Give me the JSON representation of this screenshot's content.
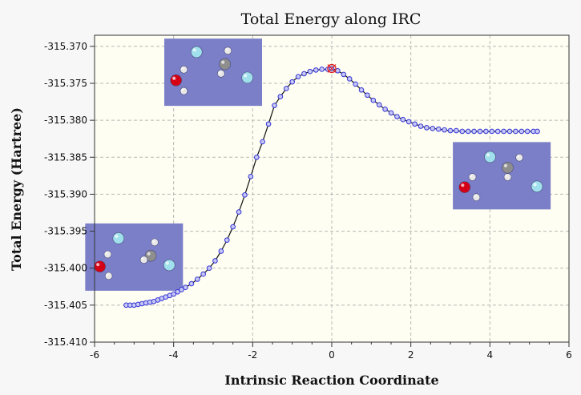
{
  "chart_data": {
    "type": "line",
    "title": "Total Energy along IRC",
    "xlabel": "Intrinsic Reaction Coordinate",
    "ylabel": "Total Energy (Hartree)",
    "xlim": [
      -6,
      6
    ],
    "ylim": [
      -315.41,
      -315.3685
    ],
    "x_ticks": [
      -6,
      -4,
      -2,
      0,
      2,
      4,
      6
    ],
    "y_ticks": [
      -315.37,
      -315.375,
      -315.38,
      -315.385,
      -315.39,
      -315.395,
      -315.4,
      -315.405,
      -315.41
    ],
    "x_tick_labels": [
      "-6",
      "-4",
      "-2",
      "0",
      "2",
      "4",
      "6"
    ],
    "y_tick_labels": [
      "-315.370",
      "-315.375",
      "-315.380",
      "-315.385",
      "-315.390",
      "-315.395",
      "-315.400",
      "-315.405",
      "-315.410"
    ],
    "grid": true,
    "legend": "none",
    "colors": {
      "plot_bg": "#fefef2",
      "line": "#111111",
      "marker_fill": "#c8c8f5",
      "marker_edge": "#3434d6",
      "highlight": "#e0201c",
      "molecule_panel": "#7b7fc8"
    },
    "series": [
      {
        "x": [
          -5.2,
          -5.1,
          -5.0,
          -4.9,
          -4.8,
          -4.7,
          -4.6,
          -4.5,
          -4.4,
          -4.3,
          -4.2,
          -4.1,
          -4.0,
          -3.9,
          -3.8,
          -3.7,
          -3.55,
          -3.4,
          -3.25,
          -3.1,
          -2.95,
          -2.8,
          -2.65,
          -2.5,
          -2.35,
          -2.2,
          -2.05,
          -1.9,
          -1.75,
          -1.6,
          -1.45,
          -1.3,
          -1.15,
          -1.0,
          -0.85,
          -0.7,
          -0.55,
          -0.4,
          -0.25,
          -0.1,
          0.0,
          0.15,
          0.3,
          0.45,
          0.6,
          0.75,
          0.9,
          1.05,
          1.2,
          1.35,
          1.5,
          1.65,
          1.8,
          1.95,
          2.1,
          2.25,
          2.4,
          2.55,
          2.7,
          2.85,
          3.0,
          3.15,
          3.3,
          3.45,
          3.6,
          3.75,
          3.9,
          4.05,
          4.2,
          4.35,
          4.5,
          4.65,
          4.8,
          4.95,
          5.1,
          5.2
        ],
        "y": [
          -315.405,
          -315.405,
          -315.405,
          -315.4049,
          -315.4048,
          -315.4047,
          -315.4046,
          -315.4045,
          -315.4043,
          -315.4041,
          -315.4039,
          -315.4037,
          -315.4035,
          -315.4032,
          -315.4029,
          -315.4026,
          -315.4021,
          -315.4015,
          -315.4008,
          -315.4,
          -315.399,
          -315.3977,
          -315.3962,
          -315.3944,
          -315.3924,
          -315.3901,
          -315.3876,
          -315.385,
          -315.3829,
          -315.3805,
          -315.378,
          -315.3768,
          -315.3757,
          -315.3748,
          -315.3741,
          -315.3737,
          -315.3734,
          -315.3732,
          -315.3731,
          -315.3731,
          -315.373,
          -315.3733,
          -315.3738,
          -315.3744,
          -315.3751,
          -315.3759,
          -315.3766,
          -315.3773,
          -315.3779,
          -315.3785,
          -315.379,
          -315.3795,
          -315.3799,
          -315.3802,
          -315.3805,
          -315.3808,
          -315.381,
          -315.3811,
          -315.3812,
          -315.3813,
          -315.3814,
          -315.3814,
          -315.3815,
          -315.3815,
          -315.3815,
          -315.3815,
          -315.3815,
          -315.3815,
          -315.3815,
          -315.3815,
          -315.3815,
          -315.3815,
          -315.3815,
          -315.3815,
          -315.3815,
          -315.3815
        ]
      }
    ],
    "highlight_point": {
      "x": 0.0,
      "y": -315.373
    },
    "structure_insets": [
      {
        "near_x": -3.0,
        "near_y": -315.3735,
        "atoms": [
          {
            "type": "light",
            "u": 0.33,
            "v": 0.2
          },
          {
            "type": "grey",
            "u": 0.62,
            "v": 0.38
          },
          {
            "type": "white",
            "u": 0.65,
            "v": 0.18
          },
          {
            "type": "white",
            "u": 0.58,
            "v": 0.52
          },
          {
            "type": "red",
            "u": 0.12,
            "v": 0.62
          },
          {
            "type": "white",
            "u": 0.2,
            "v": 0.46
          },
          {
            "type": "white",
            "u": 0.2,
            "v": 0.78
          },
          {
            "type": "light",
            "u": 0.85,
            "v": 0.58
          }
        ]
      },
      {
        "near_x": 4.3,
        "near_y": -315.3875,
        "atoms": [
          {
            "type": "light",
            "u": 0.38,
            "v": 0.22
          },
          {
            "type": "grey",
            "u": 0.56,
            "v": 0.38
          },
          {
            "type": "white",
            "u": 0.68,
            "v": 0.23
          },
          {
            "type": "white",
            "u": 0.56,
            "v": 0.52
          },
          {
            "type": "red",
            "u": 0.12,
            "v": 0.67
          },
          {
            "type": "white",
            "u": 0.2,
            "v": 0.52
          },
          {
            "type": "white",
            "u": 0.24,
            "v": 0.82
          },
          {
            "type": "light",
            "u": 0.86,
            "v": 0.66
          }
        ]
      },
      {
        "near_x": -5.0,
        "near_y": -315.3985,
        "atoms": [
          {
            "type": "light",
            "u": 0.34,
            "v": 0.22
          },
          {
            "type": "grey",
            "u": 0.67,
            "v": 0.48
          },
          {
            "type": "white",
            "u": 0.71,
            "v": 0.28
          },
          {
            "type": "white",
            "u": 0.6,
            "v": 0.54
          },
          {
            "type": "red",
            "u": 0.15,
            "v": 0.64
          },
          {
            "type": "white",
            "u": 0.23,
            "v": 0.46
          },
          {
            "type": "white",
            "u": 0.24,
            "v": 0.78
          },
          {
            "type": "light",
            "u": 0.86,
            "v": 0.62
          }
        ]
      }
    ]
  }
}
